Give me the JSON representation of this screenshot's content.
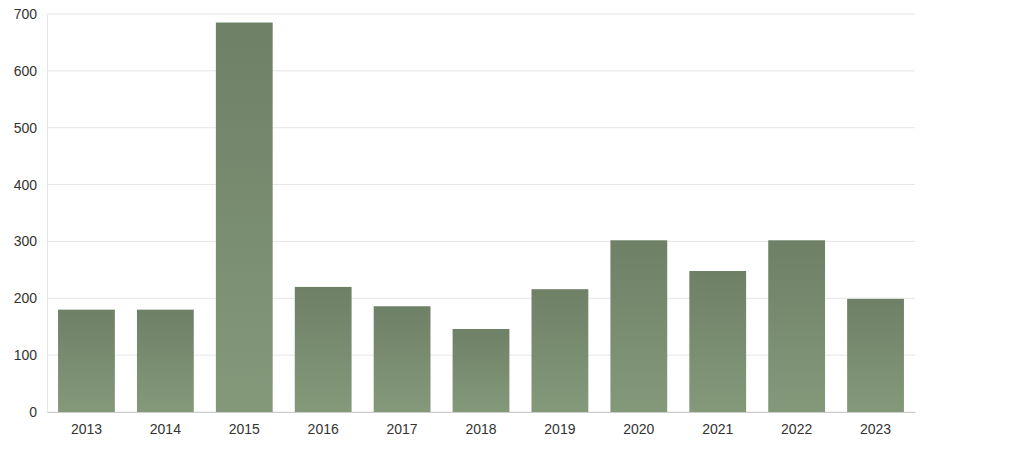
{
  "chart_data": {
    "type": "bar",
    "categories": [
      "2013",
      "2014",
      "2015",
      "2016",
      "2017",
      "2018",
      "2019",
      "2020",
      "2021",
      "2022",
      "2023"
    ],
    "values": [
      180,
      180,
      685,
      220,
      186,
      146,
      216,
      302,
      248,
      302,
      199
    ],
    "color": "#7d9174",
    "ylim": [
      0,
      700
    ],
    "yticks": [
      0,
      100,
      200,
      300,
      400,
      500,
      600,
      700
    ],
    "grid": true
  }
}
